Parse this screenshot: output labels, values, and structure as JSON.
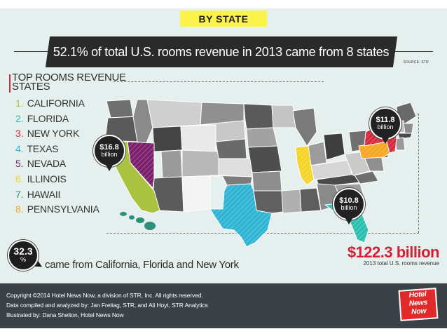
{
  "header": {
    "tag": "BY STATE",
    "headline": "52.1% of total U.S. rooms revenue in 2013 came from 8 states",
    "source": "SOURCE: STR"
  },
  "list": {
    "title_line1": "TOP ROOMS REVENUE",
    "title_line2": "STATES",
    "items": [
      {
        "num": "1.",
        "name": "CALIFORNIA",
        "color": "#a9c23f"
      },
      {
        "num": "2.",
        "name": "FLORIDA",
        "color": "#2cbfb0"
      },
      {
        "num": "3.",
        "name": "NEW YORK",
        "color": "#d42a3c"
      },
      {
        "num": "4.",
        "name": "TEXAS",
        "color": "#2fb4d4"
      },
      {
        "num": "5.",
        "name": "NEVADA",
        "color": "#7a1f6b"
      },
      {
        "num": "6.",
        "name": "ILLINOIS",
        "color": "#f5d428"
      },
      {
        "num": "7.",
        "name": "HAWAII",
        "color": "#2e8f7a"
      },
      {
        "num": "8.",
        "name": "PENNSYLVANIA",
        "color": "#f5a623"
      }
    ]
  },
  "pins": {
    "west": {
      "value": "$16.8",
      "unit": "billion"
    },
    "northeast": {
      "value": "$11.8",
      "unit": "billion"
    },
    "southeast": {
      "value": "$10.8",
      "unit": "billion"
    }
  },
  "summary": {
    "percent": "32.3",
    "percent_unit": "%",
    "text": "came from California, Florida and New York"
  },
  "total": {
    "amount": "$122.3 billion",
    "caption": "2013 total U.S. rooms revenue"
  },
  "footer": {
    "line1": "Copyright ©2014 Hotel News Now, a division of STR, Inc. All rights reserved.",
    "line2": "Data compiled and analyzed by: Jan Freitag, STR, and Ali Hoyt, STR Analytics",
    "line3": "Illustrated by: Dana Shelton, Hotel News Now"
  },
  "logo": {
    "line1": "Hotel",
    "line2": "News",
    "line3": "Now"
  }
}
